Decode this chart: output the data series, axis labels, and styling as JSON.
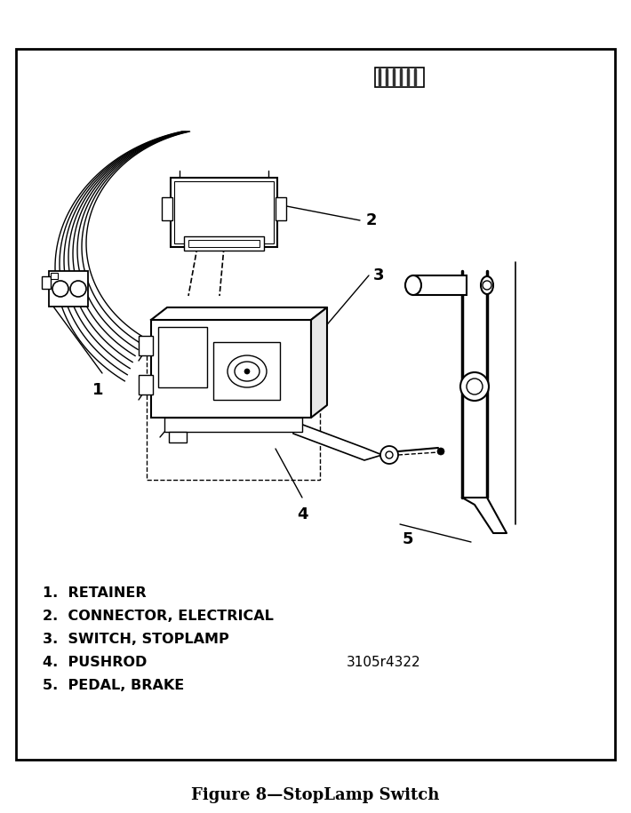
{
  "title": "Figure 8—StopLamp Switch",
  "legend_items": [
    "1.  RETAINER",
    "2.  CONNECTOR, ELECTRICAL",
    "3.  SWITCH, STOPLAMP",
    "4.  PUSHROD",
    "5.  PEDAL, BRAKE"
  ],
  "part_number": "3105r4322",
  "bg_color": "#ffffff",
  "border_color": "#000000",
  "line_color": "#000000",
  "title_fontsize": 13,
  "legend_fontsize": 11.5,
  "part_number_fontsize": 11
}
